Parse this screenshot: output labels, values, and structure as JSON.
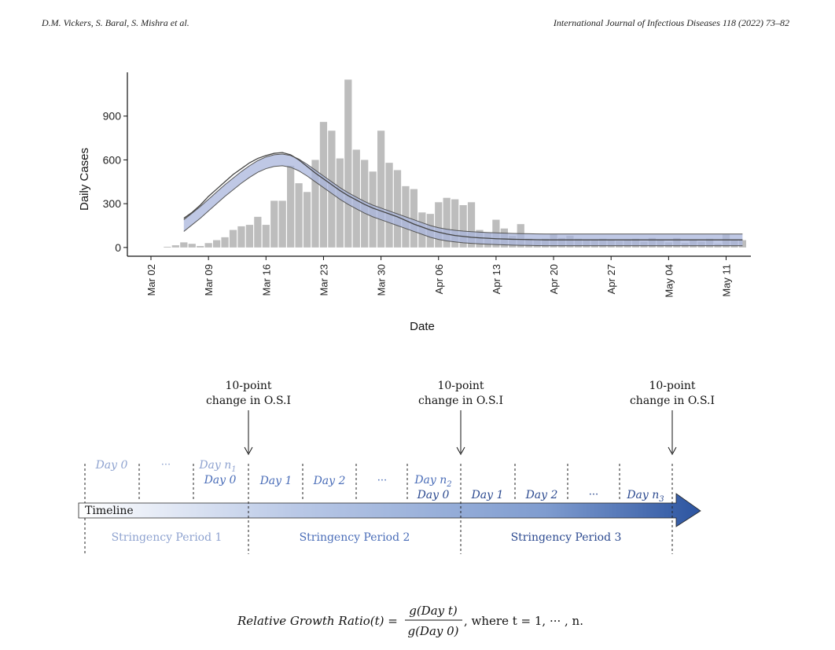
{
  "header": {
    "left": "D.M. Vickers, S. Baral, S. Mishra et al.",
    "right": "International Journal of Infectious Diseases 118 (2022) 73–82"
  },
  "chart_data": {
    "type": "bar",
    "xlabel": "Date",
    "ylabel": "Daily Cases",
    "yticks": [
      0,
      300,
      600,
      900
    ],
    "ylim": [
      -60,
      1200
    ],
    "xticks": [
      "Mar 02",
      "Mar 09",
      "Mar 16",
      "Mar 23",
      "Mar 30",
      "Apr 06",
      "Apr 13",
      "Apr 20",
      "Apr 27",
      "May 04",
      "May 11"
    ],
    "day_labels_start": 3,
    "values": [
      5,
      15,
      35,
      25,
      10,
      30,
      50,
      70,
      120,
      145,
      155,
      210,
      155,
      320,
      320,
      560,
      440,
      380,
      600,
      860,
      800,
      610,
      1150,
      670,
      600,
      520,
      800,
      580,
      530,
      420,
      400,
      240,
      230,
      310,
      340,
      330,
      290,
      310,
      120,
      100,
      190,
      130,
      80,
      160,
      60,
      55,
      60,
      90,
      65,
      80,
      60,
      55,
      50,
      60,
      50,
      45,
      55,
      60,
      40,
      65,
      50,
      35,
      65,
      30,
      50,
      40,
      60,
      25,
      90,
      55,
      50
    ],
    "smooth": {
      "start_index": 2,
      "mean": [
        150,
        195,
        240,
        290,
        340,
        390,
        435,
        480,
        520,
        555,
        580,
        595,
        600,
        590,
        565,
        530,
        490,
        450,
        410,
        370,
        335,
        305,
        275,
        250,
        230,
        210,
        190,
        170,
        150,
        130,
        110,
        95,
        85,
        78,
        72,
        68,
        65,
        62,
        60,
        58,
        56,
        55,
        54,
        53,
        52,
        52,
        52,
        52,
        52,
        52,
        52,
        52,
        52,
        52,
        52,
        52,
        52,
        52,
        52,
        52,
        52,
        52,
        52,
        52,
        52,
        52,
        52,
        52,
        52
      ],
      "band": 40
    },
    "observed_line": {
      "start_index": 2,
      "values": [
        200,
        240,
        290,
        350,
        400,
        450,
        500,
        540,
        580,
        610,
        630,
        645,
        650,
        635,
        600,
        555,
        510,
        470,
        430,
        390,
        355,
        325,
        295,
        270,
        250,
        230,
        210,
        185,
        160,
        140,
        120,
        105,
        92,
        82,
        76,
        70,
        66,
        63,
        60,
        58,
        56,
        55,
        54,
        53,
        52,
        52,
        52,
        52,
        52,
        52,
        52,
        52,
        52,
        52,
        52,
        52,
        52,
        52,
        52,
        52,
        52,
        52,
        52,
        52,
        52,
        52,
        52,
        52,
        52
      ]
    }
  },
  "timeline": {
    "label": "Timeline",
    "arrows": [
      {
        "line1": "10-point",
        "line2": "change in O.S.I"
      },
      {
        "line1": "10-point",
        "line2": "change in O.S.I"
      },
      {
        "line1": "10-point",
        "line2": "change in O.S.I"
      }
    ],
    "periods": [
      "Stringency Period 1",
      "Stringency Period 2",
      "Stringency Period 3"
    ],
    "p1_days": {
      "day0": "Day 0",
      "dots": "···",
      "dayn": "Day n",
      "dayn_sub": "1"
    },
    "p2_days": {
      "day0": "Day 0",
      "day1": "Day 1",
      "day2": "Day 2",
      "dots": "···",
      "dayn": "Day n",
      "dayn_sub": "2"
    },
    "p3_days": {
      "day0": "Day 0",
      "day1": "Day 1",
      "day2": "Day 2",
      "dots": "···",
      "dayn": "Day n",
      "dayn_sub": "3"
    }
  },
  "formula": {
    "lhs": "Relative Growth Ratio(t) =",
    "numerator": "g(Day t)",
    "denominator": "g(Day 0)",
    "rhs": ", where t = 1, ··· , n."
  },
  "colors": {
    "bar": "#bdbdbd",
    "band": "#a9b6dc",
    "timeline_dark": "#2c54a0",
    "period1_text": "#8fa3d0",
    "period2_text": "#4a6db8",
    "period3_text": "#2c4a90"
  }
}
